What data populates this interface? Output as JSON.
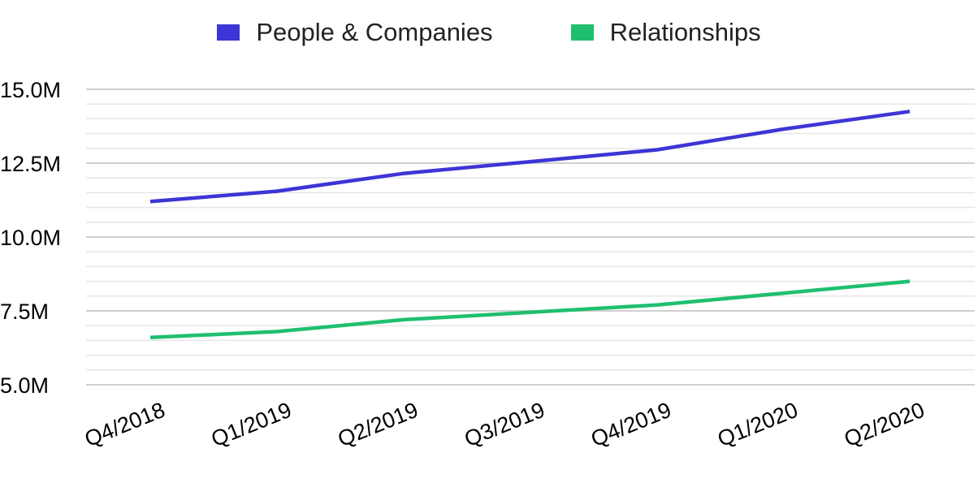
{
  "chart_data": {
    "type": "line",
    "categories": [
      "Q4/2018",
      "Q1/2019",
      "Q2/2019",
      "Q3/2019",
      "Q4/2019",
      "Q1/2020",
      "Q2/2020"
    ],
    "series": [
      {
        "name": "People & Companies",
        "color": "#3d35d6",
        "values": [
          11.2,
          11.55,
          12.15,
          12.55,
          12.95,
          13.65,
          14.25
        ]
      },
      {
        "name": "Relationships",
        "color": "#1fbf6e",
        "values": [
          6.6,
          6.8,
          7.2,
          7.45,
          7.7,
          8.1,
          8.5
        ]
      }
    ],
    "y_ticks": [
      "5.0M",
      "7.5M",
      "10.0M",
      "12.5M",
      "15.0M"
    ],
    "ylim": [
      5,
      15
    ],
    "y_unit": "M",
    "grid": true,
    "legend_position": "top-center",
    "title": "",
    "xlabel": "",
    "ylabel": ""
  }
}
